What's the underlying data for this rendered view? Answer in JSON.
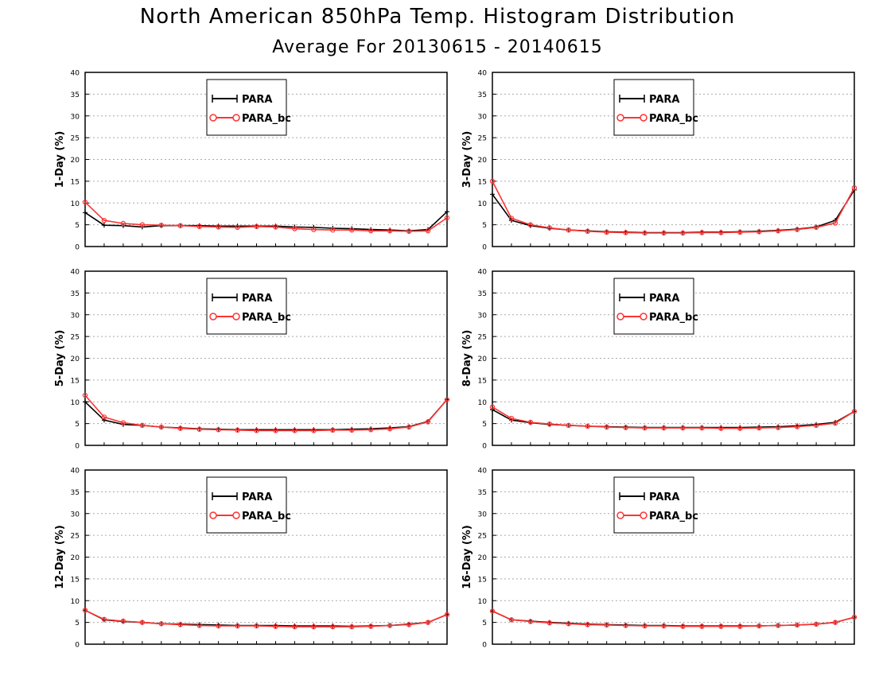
{
  "title": "North American 850hPa Temp. Histogram Distribution",
  "subtitle": "Average For 20130615 - 20140615",
  "chart_data": [
    {
      "type": "line",
      "ylabel": "1-Day (%)",
      "ylim": [
        0,
        40
      ],
      "yticks": [
        "0",
        "5",
        "10",
        "15",
        "20",
        "25",
        "30",
        "35",
        "40"
      ],
      "grid": true,
      "legend_position": "top-left-inset",
      "series": [
        {
          "name": "PARA",
          "color": "#000000",
          "marker": "plus",
          "values": [
            7.8,
            4.9,
            4.8,
            4.5,
            4.8,
            4.8,
            4.8,
            4.7,
            4.7,
            4.7,
            4.7,
            4.5,
            4.4,
            4.2,
            4.1,
            3.9,
            3.8,
            3.6,
            3.9,
            8.0
          ]
        },
        {
          "name": "PARA_bc",
          "color": "#ff3333",
          "marker": "circle",
          "values": [
            10.2,
            6.0,
            5.3,
            5.0,
            4.9,
            4.8,
            4.6,
            4.5,
            4.4,
            4.6,
            4.5,
            4.1,
            3.9,
            3.8,
            3.8,
            3.6,
            3.6,
            3.5,
            3.6,
            6.6
          ]
        }
      ]
    },
    {
      "type": "line",
      "ylabel": "3-Day (%)",
      "ylim": [
        0,
        40
      ],
      "yticks": [
        "0",
        "5",
        "10",
        "15",
        "20",
        "25",
        "30",
        "35",
        "40"
      ],
      "grid": true,
      "legend_position": "top-left-inset",
      "series": [
        {
          "name": "PARA",
          "color": "#000000",
          "marker": "plus",
          "values": [
            12.0,
            6.0,
            4.8,
            4.2,
            3.8,
            3.6,
            3.4,
            3.3,
            3.2,
            3.2,
            3.2,
            3.3,
            3.3,
            3.4,
            3.5,
            3.7,
            4.0,
            4.5,
            6.0,
            13.0
          ]
        },
        {
          "name": "PARA_bc",
          "color": "#ff3333",
          "marker": "circle",
          "values": [
            15.0,
            6.5,
            5.0,
            4.3,
            3.8,
            3.5,
            3.3,
            3.2,
            3.1,
            3.1,
            3.1,
            3.2,
            3.2,
            3.3,
            3.4,
            3.6,
            3.9,
            4.4,
            5.4,
            13.5
          ]
        }
      ]
    },
    {
      "type": "line",
      "ylabel": "5-Day (%)",
      "ylim": [
        0,
        40
      ],
      "yticks": [
        "0",
        "5",
        "10",
        "15",
        "20",
        "25",
        "30",
        "35",
        "40"
      ],
      "grid": true,
      "legend_position": "top-left-inset",
      "series": [
        {
          "name": "PARA",
          "color": "#000000",
          "marker": "plus",
          "values": [
            10.0,
            5.8,
            4.8,
            4.6,
            4.2,
            4.0,
            3.8,
            3.7,
            3.6,
            3.6,
            3.6,
            3.6,
            3.6,
            3.6,
            3.7,
            3.8,
            4.0,
            4.3,
            5.5,
            10.5
          ]
        },
        {
          "name": "PARA_bc",
          "color": "#ff3333",
          "marker": "circle",
          "values": [
            11.5,
            6.5,
            5.2,
            4.6,
            4.2,
            3.9,
            3.7,
            3.6,
            3.5,
            3.4,
            3.4,
            3.4,
            3.4,
            3.5,
            3.5,
            3.6,
            3.8,
            4.2,
            5.4,
            10.5
          ]
        }
      ]
    },
    {
      "type": "line",
      "ylabel": "8-Day (%)",
      "ylim": [
        0,
        40
      ],
      "yticks": [
        "0",
        "5",
        "10",
        "15",
        "20",
        "25",
        "30",
        "35",
        "40"
      ],
      "grid": true,
      "legend_position": "top-left-inset",
      "series": [
        {
          "name": "PARA",
          "color": "#000000",
          "marker": "plus",
          "values": [
            8.2,
            5.8,
            5.2,
            4.8,
            4.6,
            4.4,
            4.3,
            4.2,
            4.1,
            4.1,
            4.1,
            4.1,
            4.1,
            4.1,
            4.2,
            4.3,
            4.5,
            4.8,
            5.3,
            7.8
          ]
        },
        {
          "name": "PARA_bc",
          "color": "#ff3333",
          "marker": "circle",
          "values": [
            8.8,
            6.2,
            5.3,
            4.9,
            4.6,
            4.4,
            4.2,
            4.1,
            4.0,
            4.0,
            4.0,
            4.0,
            3.9,
            3.9,
            4.0,
            4.1,
            4.3,
            4.6,
            5.1,
            7.8
          ]
        }
      ]
    },
    {
      "type": "line",
      "ylabel": "12-Day (%)",
      "ylim": [
        0,
        40
      ],
      "yticks": [
        "0",
        "5",
        "10",
        "15",
        "20",
        "25",
        "30",
        "35",
        "40"
      ],
      "grid": true,
      "legend_position": "top-left-inset",
      "series": [
        {
          "name": "PARA",
          "color": "#000000",
          "marker": "plus",
          "values": [
            7.8,
            5.6,
            5.2,
            5.0,
            4.7,
            4.6,
            4.5,
            4.4,
            4.3,
            4.3,
            4.3,
            4.2,
            4.2,
            4.2,
            4.1,
            4.2,
            4.3,
            4.6,
            5.0,
            6.8
          ]
        },
        {
          "name": "PARA_bc",
          "color": "#ff3333",
          "marker": "circle",
          "values": [
            7.8,
            5.7,
            5.3,
            5.0,
            4.7,
            4.5,
            4.3,
            4.2,
            4.2,
            4.2,
            4.1,
            4.0,
            4.0,
            4.0,
            4.0,
            4.1,
            4.3,
            4.5,
            5.0,
            6.8
          ]
        }
      ]
    },
    {
      "type": "line",
      "ylabel": "16-Day (%)",
      "ylim": [
        0,
        40
      ],
      "yticks": [
        "0",
        "5",
        "10",
        "15",
        "20",
        "25",
        "30",
        "35",
        "40"
      ],
      "grid": true,
      "legend_position": "top-left-inset",
      "series": [
        {
          "name": "PARA",
          "color": "#000000",
          "marker": "plus",
          "values": [
            7.6,
            5.6,
            5.3,
            5.0,
            4.8,
            4.6,
            4.5,
            4.4,
            4.3,
            4.3,
            4.2,
            4.2,
            4.2,
            4.2,
            4.2,
            4.3,
            4.4,
            4.6,
            5.0,
            6.2
          ]
        },
        {
          "name": "PARA_bc",
          "color": "#ff3333",
          "marker": "circle",
          "values": [
            7.6,
            5.6,
            5.2,
            4.9,
            4.7,
            4.5,
            4.4,
            4.3,
            4.2,
            4.2,
            4.1,
            4.1,
            4.1,
            4.1,
            4.2,
            4.3,
            4.4,
            4.6,
            5.0,
            6.2
          ]
        }
      ]
    }
  ]
}
